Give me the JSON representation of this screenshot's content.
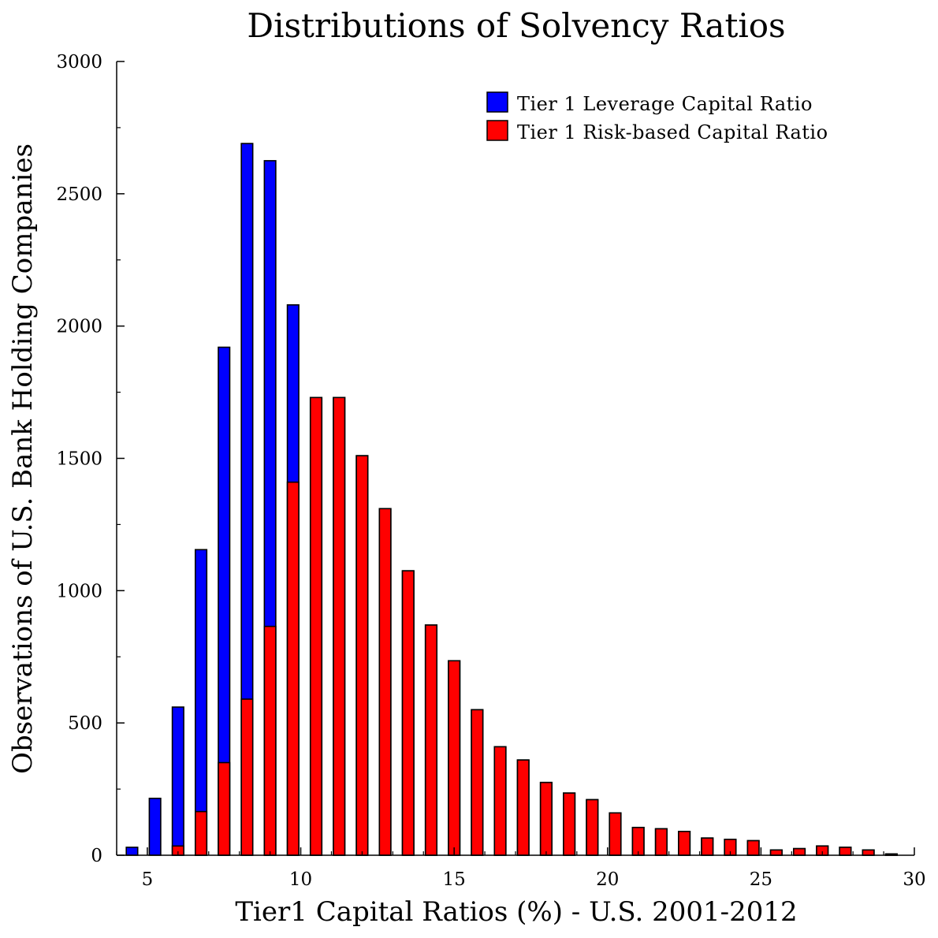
{
  "chart_data": {
    "type": "bar",
    "title": "Distributions of Solvency Ratios",
    "xlabel": "Tier1 Capital Ratios (%) - U.S. 2001-2012",
    "ylabel": "Observations of U.S. Bank Holding Companies",
    "xlim": [
      4,
      30
    ],
    "ylim": [
      0,
      3000
    ],
    "xticks": [
      5,
      10,
      15,
      20,
      25,
      30
    ],
    "yticks": [
      0,
      500,
      1000,
      1500,
      2000,
      2500,
      3000
    ],
    "grid": false,
    "legend": "top-right",
    "bar_centers": [
      4.5,
      5.25,
      6.0,
      6.75,
      7.5,
      8.25,
      9.0,
      9.75,
      10.5,
      11.25,
      12.0,
      12.75,
      13.5,
      14.25,
      15.0,
      15.75,
      16.5,
      17.25,
      18.0,
      18.75,
      19.5,
      20.25,
      21.0,
      21.75,
      22.5,
      23.25,
      24.0,
      24.75,
      25.5,
      26.25,
      27.0,
      27.75,
      28.5,
      29.25
    ],
    "series": [
      {
        "name": "Tier 1 Leverage Capital Ratio",
        "color": "#0000ff",
        "values": [
          30,
          215,
          560,
          1155,
          1920,
          2690,
          2625,
          2080,
          1730,
          1730,
          1510,
          1310,
          1075,
          870,
          735,
          550,
          410,
          360,
          275,
          235,
          210,
          160,
          105,
          100,
          90,
          65,
          60,
          55,
          20,
          25,
          35,
          30,
          20,
          5
        ]
      },
      {
        "name": "Tier 1 Risk-based Capital Ratio",
        "color": "#ff0000",
        "values": [
          0,
          0,
          35,
          165,
          350,
          590,
          865,
          1410,
          1730,
          1730,
          1510,
          1310,
          1075,
          870,
          735,
          550,
          410,
          360,
          275,
          235,
          210,
          160,
          105,
          100,
          90,
          65,
          60,
          55,
          20,
          25,
          35,
          30,
          20,
          5
        ]
      }
    ]
  }
}
